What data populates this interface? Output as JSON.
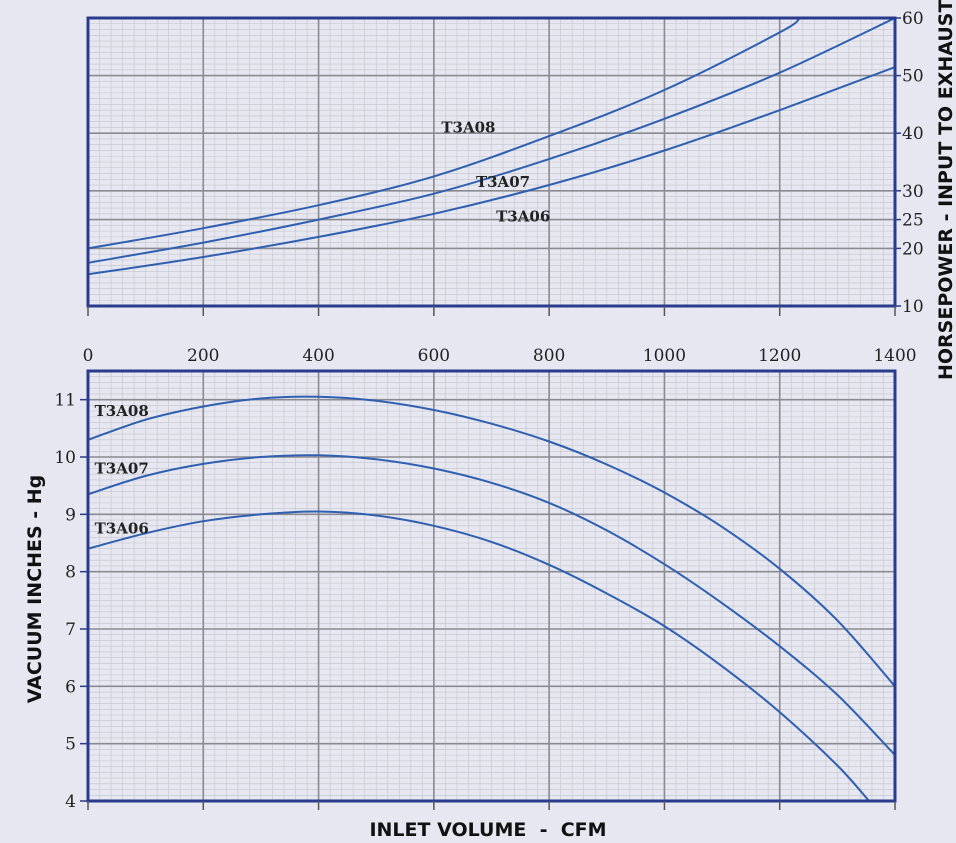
{
  "colors": {
    "background": "#e6e7f0",
    "plot_border": "#2a3a8c",
    "curve": "#2f5fb0",
    "grid_major": "#8a8a90",
    "grid_minor": "#c4c4cc"
  },
  "chart_data": [
    {
      "type": "line",
      "name": "horsepower",
      "xlim": [
        0,
        1400
      ],
      "ylim": [
        10,
        60
      ],
      "x_ticks": [
        0,
        200,
        400,
        600,
        800,
        1000,
        1200,
        1400
      ],
      "y_ticks": [
        10,
        20,
        25,
        30,
        40,
        50,
        60
      ],
      "y_tick_labels": [
        "10",
        "20",
        "25",
        "30",
        "40",
        "50",
        "60"
      ],
      "y_axis_side": "right",
      "ylabel": "HORSEPOWER - INPUT TO EXHAUSTER",
      "grid": true,
      "series": [
        {
          "name": "T3A08",
          "x": [
            0,
            200,
            400,
            600,
            800,
            1000,
            1200,
            1235
          ],
          "y": [
            20.0,
            23.5,
            27.5,
            32.5,
            39.5,
            47.5,
            57.5,
            60.0
          ]
        },
        {
          "name": "T3A07",
          "x": [
            0,
            200,
            400,
            600,
            800,
            1000,
            1200,
            1400
          ],
          "y": [
            17.5,
            21.0,
            25.0,
            29.5,
            35.5,
            42.5,
            50.5,
            60.0
          ]
        },
        {
          "name": "T3A06",
          "x": [
            0,
            200,
            400,
            600,
            800,
            1000,
            1200,
            1400
          ],
          "y": [
            15.5,
            18.5,
            22.0,
            26.0,
            31.0,
            37.0,
            44.0,
            51.5
          ]
        }
      ],
      "annotations": [
        {
          "text": "T3A08",
          "x": 660,
          "y": 41.0
        },
        {
          "text": "T3A07",
          "x": 720,
          "y": 31.5
        },
        {
          "text": "T3A06",
          "x": 755,
          "y": 25.5
        }
      ]
    },
    {
      "type": "line",
      "name": "vacuum",
      "xlim": [
        0,
        1400
      ],
      "ylim": [
        4,
        11.5
      ],
      "y_ticks": [
        4,
        5,
        6,
        7,
        8,
        9,
        10,
        11
      ],
      "x_ticks": [
        0,
        200,
        400,
        600,
        800,
        1000,
        1200,
        1400
      ],
      "ylabel": "VACUUM INCHES - Hg",
      "xlabel": "INLET VOLUME  -  CFM",
      "grid": true,
      "series": [
        {
          "name": "T3A08",
          "x": [
            0,
            100,
            200,
            300,
            400,
            500,
            600,
            700,
            800,
            900,
            1000,
            1100,
            1200,
            1300,
            1400
          ],
          "y": [
            10.3,
            10.65,
            10.88,
            11.02,
            11.05,
            10.98,
            10.82,
            10.58,
            10.27,
            9.87,
            9.38,
            8.78,
            8.05,
            7.15,
            6.0
          ]
        },
        {
          "name": "T3A07",
          "x": [
            0,
            100,
            200,
            300,
            400,
            500,
            600,
            700,
            800,
            900,
            1000,
            1100,
            1200,
            1300,
            1400
          ],
          "y": [
            9.35,
            9.67,
            9.88,
            10.0,
            10.03,
            9.96,
            9.8,
            9.55,
            9.2,
            8.72,
            8.13,
            7.45,
            6.7,
            5.85,
            4.8
          ]
        },
        {
          "name": "T3A06",
          "x": [
            0,
            100,
            200,
            300,
            400,
            500,
            600,
            700,
            800,
            900,
            1000,
            1100,
            1200,
            1300,
            1355
          ],
          "y": [
            8.4,
            8.67,
            8.88,
            9.0,
            9.05,
            8.98,
            8.8,
            8.52,
            8.12,
            7.62,
            7.05,
            6.35,
            5.55,
            4.62,
            4.0
          ]
        }
      ],
      "annotations": [
        {
          "text": "T3A08",
          "x": 15,
          "y": 10.8
        },
        {
          "text": "T3A07",
          "x": 15,
          "y": 9.8
        },
        {
          "text": "T3A06",
          "x": 15,
          "y": 8.75
        }
      ]
    }
  ]
}
